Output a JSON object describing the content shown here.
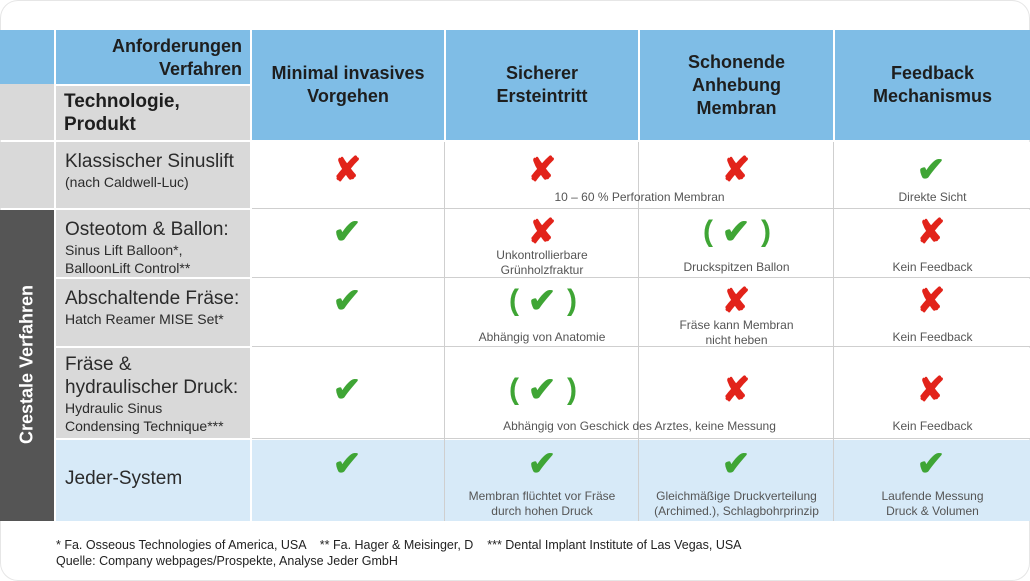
{
  "header": {
    "corner_line1": "Anforderungen",
    "corner_line2": "Verfahren",
    "tech_line1": "Technologie,",
    "tech_line2": "Produkt",
    "col1_line1": "Minimal invasives",
    "col1_line2": "Vorgehen",
    "col2_line1": "Sicherer",
    "col2_line2": "Ersteintritt",
    "col3_line1": "Schonende",
    "col3_line2": "Anhebung",
    "col3_line3": "Membran",
    "col4_line1": "Feedback",
    "col4_line2": "Mechanismus"
  },
  "side_label": "Crestale Verfahren",
  "rows": [
    {
      "main": "Klassischer Sinuslift",
      "sub1": "(nach Caldwell-Luc)",
      "sub2": "",
      "note_span": "10 – 60 % Perforation Membran",
      "note4": "Direkte Sicht"
    },
    {
      "main": "Osteotom & Ballon:",
      "sub1": "Sinus Lift Balloon*,",
      "sub2": "BalloonLift Control**",
      "note2_l1": "Unkontrollierbare",
      "note2_l2": "Grünholzfraktur",
      "note3": "Druckspitzen Ballon",
      "note4": "Kein Feedback"
    },
    {
      "main": "Abschaltende Fräse:",
      "sub1": "Hatch Reamer MISE Set*",
      "note2": "Abhängig von Anatomie",
      "note3_l1": "Fräse kann Membran",
      "note3_l2": "nicht heben",
      "note4": "Kein Feedback"
    },
    {
      "main1": "Fräse &",
      "main2": "hydraulischer Druck:",
      "sub1": "Hydraulic Sinus",
      "sub2": "Condensing Technique***",
      "note_span": "Abhängig von Geschick des Arztes, keine Messung",
      "note4": "Kein Feedback"
    },
    {
      "main": "Jeder-System",
      "note2_l1": "Membran flüchtet vor Fräse",
      "note2_l2": "durch hohen Druck",
      "note3_l1": "Gleichmäßige Druckverteilung",
      "note3_l2": "(Archimed.), Schlagbohrprinzip",
      "note4_l1": "Laufende Messung",
      "note4_l2": "Druck & Volumen"
    }
  ],
  "symbols": {
    "check": "✔",
    "cross": "✘",
    "paren_open": "(",
    "paren_close": ")"
  },
  "footnotes": {
    "line1": "* Fa. Osseous Technologies of America, USA    ** Fa. Hager & Meisinger, D    *** Dental Implant Institute of Las Vegas, USA",
    "line2": "Quelle: Company webpages/Prospekte, Analyse Jeder GmbH"
  },
  "colors": {
    "header_blue": "#7fbde6",
    "highlight_row": "#d7eaf8",
    "label_gray": "#d9d9d9",
    "side_dark": "#555555",
    "check_green": "#3fa535",
    "cross_red": "#e2231a"
  }
}
